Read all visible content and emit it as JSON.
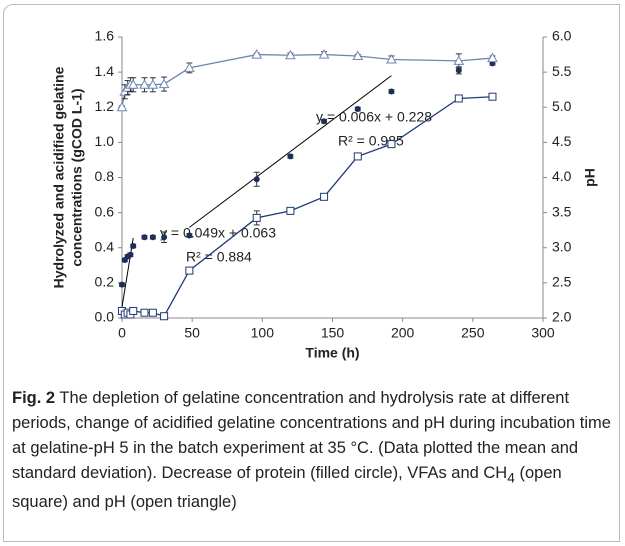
{
  "chart_data": {
    "type": "line",
    "xlabel": "Time (h)",
    "ylabel": [
      "Hydrolyzed and acidified gelatine",
      "concentrations (gCOD L-1)"
    ],
    "y2label": "pH",
    "xlim": [
      0,
      300
    ],
    "xticks": [
      0,
      50,
      100,
      150,
      200,
      250,
      300
    ],
    "ylim": [
      0,
      1.6
    ],
    "yticks": [
      {
        "value": 0,
        "label": "0.0"
      },
      {
        "value": 0.2,
        "label": "0.2"
      },
      {
        "value": 0.4,
        "label": "0.4"
      },
      {
        "value": 0.6,
        "label": "0.6"
      },
      {
        "value": 0.8,
        "label": "0.8"
      },
      {
        "value": 1,
        "label": "1.0"
      },
      {
        "value": 1.2,
        "label": "1.2"
      },
      {
        "value": 1.4,
        "label": "1.4"
      },
      {
        "value": 1.6,
        "label": "1.6"
      }
    ],
    "y2lim": [
      2,
      6
    ],
    "y2ticks": [
      {
        "value": 2,
        "label": "2.0"
      },
      {
        "value": 2.5,
        "label": "2.5"
      },
      {
        "value": 3,
        "label": "3.0"
      },
      {
        "value": 3.5,
        "label": "3.5"
      },
      {
        "value": 4,
        "label": "4.0"
      },
      {
        "value": 4.5,
        "label": "4.5"
      },
      {
        "value": 5,
        "label": "5.0"
      },
      {
        "value": 5.5,
        "label": "5.5"
      },
      {
        "value": 6,
        "label": "6.0"
      }
    ],
    "x": [
      0,
      2,
      4,
      6,
      8,
      16,
      22,
      30,
      48,
      96,
      120,
      144,
      168,
      192,
      240,
      264
    ],
    "series": [
      {
        "marker": "circle",
        "color": "#1f2d5a",
        "line": false,
        "values": [
          0.19,
          0.33,
          0.35,
          0.36,
          0.41,
          0.46,
          0.46,
          0.46,
          0.47,
          0.79,
          0.92,
          1.12,
          1.19,
          1.29,
          1.41,
          1.45
        ],
        "errors": [
          0.01,
          0.01,
          0.01,
          0.01,
          0.01,
          0.01,
          0.01,
          0.03,
          0.01,
          0.04,
          0.01,
          0.01,
          0.01,
          0.01,
          0.02,
          0.01
        ]
      },
      {
        "marker": "square",
        "color": "#1f3b73",
        "line": true,
        "values": [
          0.04,
          0.02,
          0.03,
          0.02,
          0.04,
          0.03,
          0.03,
          0.01,
          0.27,
          0.57,
          0.61,
          0.69,
          0.92,
          0.99,
          1.25,
          1.26
        ],
        "errors": [
          0.01,
          0.01,
          0.01,
          0.01,
          0.01,
          0.01,
          0.01,
          0.01,
          0.01,
          0.04,
          0.01,
          0.01,
          0.01,
          0.01,
          0.01,
          0.01
        ]
      },
      {
        "marker": "triangle",
        "color": "#6f86b0",
        "line": true,
        "axis": "y2",
        "values": [
          5.0,
          5.22,
          5.28,
          5.32,
          5.32,
          5.32,
          5.32,
          5.33,
          5.56,
          5.75,
          5.74,
          5.75,
          5.73,
          5.68,
          5.66,
          5.7
        ],
        "errors": [
          0.02,
          0.1,
          0.1,
          0.1,
          0.1,
          0.1,
          0.1,
          0.1,
          0.07,
          0.02,
          0.03,
          0.04,
          0.02,
          0.05,
          0.1,
          0.03
        ]
      }
    ],
    "trendlines": [
      {
        "equation": "y = 0.049x + 0.063",
        "r2": "R² = 0.884",
        "x": [
          0,
          8
        ],
        "y": [
          0.063,
          0.455
        ]
      },
      {
        "equation": "y = 0.006x + 0.228",
        "r2": "R² = 0.985",
        "x": [
          48,
          192
        ],
        "y": [
          0.516,
          1.38
        ]
      }
    ]
  },
  "caption": {
    "label": "Fig. 2",
    "parts": [
      " The depletion of gelatine concentration and hydrolysis rate at different periods, change of acidified gelatine concentrations and pH during incubation time at gelatine-pH 5 in the batch experiment at 35 °C. (Data plotted the mean and standard deviation). Decrease of protein (filled circle), VFAs and CH",
      "4",
      " (open square) and pH (open triangle)"
    ]
  }
}
